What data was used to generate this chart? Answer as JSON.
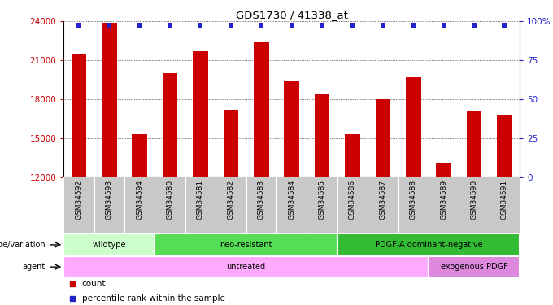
{
  "title": "GDS1730 / 41338_at",
  "samples": [
    "GSM34592",
    "GSM34593",
    "GSM34594",
    "GSM34580",
    "GSM34581",
    "GSM34582",
    "GSM34583",
    "GSM34584",
    "GSM34585",
    "GSM34586",
    "GSM34587",
    "GSM34588",
    "GSM34589",
    "GSM34590",
    "GSM34591"
  ],
  "counts": [
    21500,
    23900,
    15300,
    20000,
    21700,
    17200,
    22400,
    19400,
    18400,
    15300,
    18000,
    19700,
    13100,
    17100,
    16800
  ],
  "ylim_left": [
    12000,
    24000
  ],
  "ylim_right": [
    0,
    100
  ],
  "yticks_left": [
    12000,
    15000,
    18000,
    21000,
    24000
  ],
  "yticks_right": [
    0,
    25,
    50,
    75,
    100
  ],
  "ytick_right_labels": [
    "0",
    "25",
    "50",
    "75",
    "100%"
  ],
  "bar_color": "#cc0000",
  "dot_color": "#2222cc",
  "bar_width": 0.5,
  "tick_label_bg": "#c8c8c8",
  "left_axis_color": "#cc0000",
  "right_axis_color": "#2222cc",
  "groups": [
    {
      "label": "wildtype",
      "start": 0,
      "end": 3,
      "color": "#ccffcc"
    },
    {
      "label": "neo-resistant",
      "start": 3,
      "end": 9,
      "color": "#55dd55"
    },
    {
      "label": "PDGF-A dominant-negative",
      "start": 9,
      "end": 15,
      "color": "#33bb33"
    }
  ],
  "agents": [
    {
      "label": "untreated",
      "start": 0,
      "end": 12,
      "color": "#ffaaff"
    },
    {
      "label": "exogenous PDGF",
      "start": 12,
      "end": 15,
      "color": "#dd88dd"
    }
  ],
  "genotype_label": "genotype/variation",
  "agent_label": "agent",
  "legend_count_label": "count",
  "legend_pct_label": "percentile rank within the sample"
}
